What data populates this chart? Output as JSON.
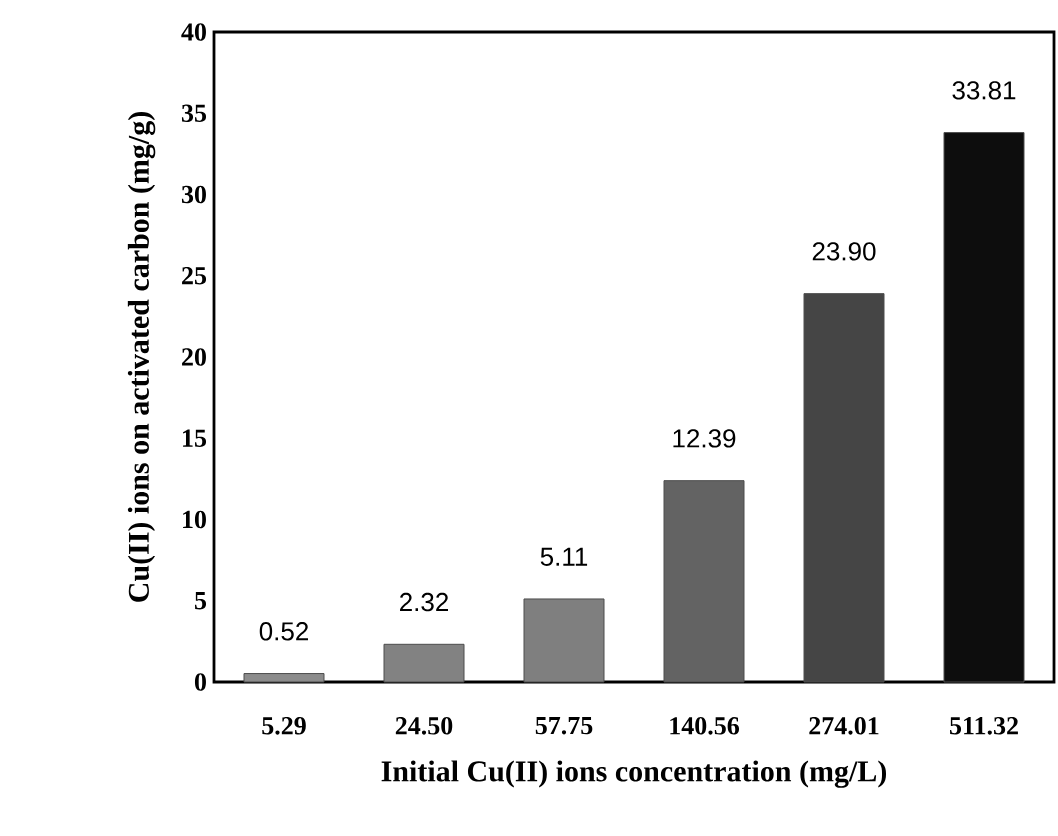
{
  "chart_data": {
    "type": "bar",
    "xlabel": "Initial Cu(II) ions concentration (mg/L)",
    "ylabel": "Cu(II) ions on activated carbon (mg/g)",
    "categories": [
      "5.29",
      "24.50",
      "57.75",
      "140.56",
      "274.01",
      "511.32"
    ],
    "values": [
      0.52,
      2.32,
      5.11,
      12.39,
      23.9,
      33.81
    ],
    "value_labels": [
      "0.52",
      "2.32",
      "5.11",
      "12.39",
      "23.90",
      "33.81"
    ],
    "colors": [
      "#8c8c8c",
      "#828282",
      "#7f7f7f",
      "#636363",
      "#454545",
      "#0d0d0d"
    ],
    "ylim": [
      0,
      40
    ],
    "yticks": [
      0,
      5,
      10,
      15,
      20,
      25,
      30,
      35,
      40
    ]
  }
}
